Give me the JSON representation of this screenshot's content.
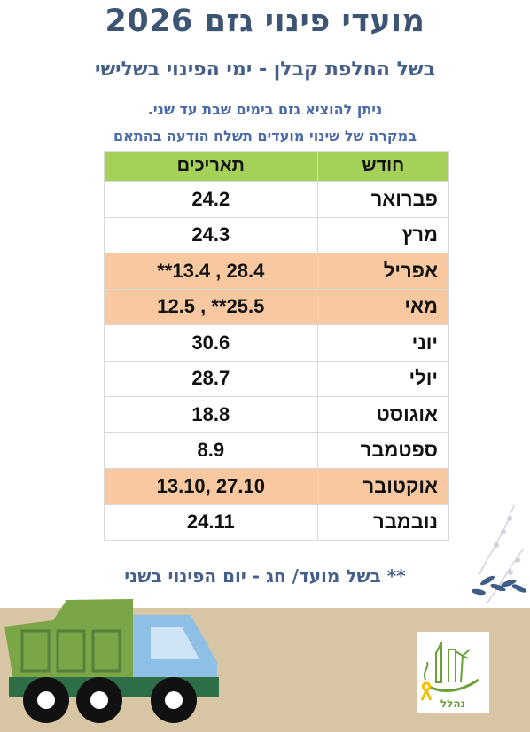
{
  "header": {
    "title": "מועדי פינוי גזם 2026",
    "subtitle": "בשל החלפת קבלן - ימי הפינוי בשלישי",
    "note_line1": "ניתן להוציא גזם בימים שבת עד שני.",
    "note_line2": "במקרה של שינוי מועדים תשלח הודעה בהתאם"
  },
  "table": {
    "col_month": "חודש",
    "col_dates": "תאריכים",
    "rows": [
      {
        "month": "פברואר",
        "dates": "24.2",
        "highlight": false
      },
      {
        "month": "מרץ",
        "dates": "24.3",
        "highlight": false
      },
      {
        "month": "אפריל",
        "dates": "**13.4 , 28.4",
        "highlight": true
      },
      {
        "month": "מאי",
        "dates": "12.5 , **25.5",
        "highlight": true
      },
      {
        "month": "יוני",
        "dates": "30.6",
        "highlight": false
      },
      {
        "month": "יולי",
        "dates": "28.7",
        "highlight": false
      },
      {
        "month": "אוגוסט",
        "dates": "18.8",
        "highlight": false
      },
      {
        "month": "ספטמבר",
        "dates": "8.9",
        "highlight": false
      },
      {
        "month": "אוקטובר",
        "dates": "13.10, 27.10",
        "highlight": true
      },
      {
        "month": "נובמבר",
        "dates": "24.11",
        "highlight": false
      }
    ]
  },
  "footnote": "** בשל מועד/ חג - יום הפינוי בשני",
  "logo": {
    "text": "נהלל"
  },
  "colors": {
    "title": "#3d5474",
    "header_green": "#a5d159",
    "highlight_row": "#f8c9a1",
    "band": "#d8c5a3"
  }
}
